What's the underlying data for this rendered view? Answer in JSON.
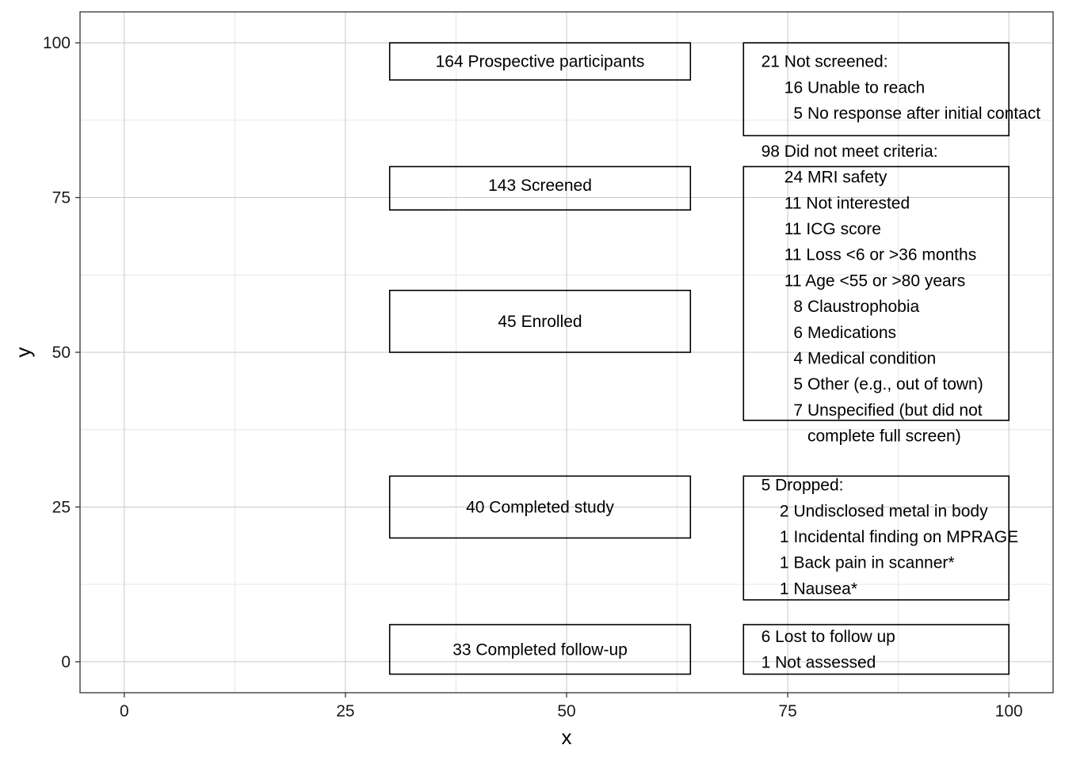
{
  "chart_data": {
    "type": "diagram",
    "xlabel": "x",
    "ylabel": "y",
    "xlim": [
      -5,
      105
    ],
    "ylim": [
      -5,
      105
    ],
    "x_ticks": [
      0,
      25,
      50,
      75,
      100
    ],
    "y_ticks": [
      0,
      25,
      50,
      75,
      100
    ],
    "grid": true,
    "boxes": [
      {
        "id": "prospective",
        "xmin": 30,
        "xmax": 64,
        "ymin": 94,
        "ymax": 100,
        "label": "164 Prospective participants",
        "label_x": 47,
        "label_y": 97,
        "align": "center"
      },
      {
        "id": "screened",
        "xmin": 30,
        "xmax": 64,
        "ymin": 73,
        "ymax": 80,
        "label": "143 Screened",
        "label_x": 47,
        "label_y": 77,
        "align": "center"
      },
      {
        "id": "enrolled",
        "xmin": 30,
        "xmax": 64,
        "ymin": 50,
        "ymax": 60,
        "label": "45 Enrolled",
        "label_x": 47,
        "label_y": 55,
        "align": "center"
      },
      {
        "id": "completed",
        "xmin": 30,
        "xmax": 64,
        "ymin": 20,
        "ymax": 30,
        "label": "40 Completed study",
        "label_x": 47,
        "label_y": 25,
        "align": "center"
      },
      {
        "id": "followup",
        "xmin": 30,
        "xmax": 64,
        "ymin": -2,
        "ymax": 6,
        "label": "33 Completed follow-up",
        "label_x": 47,
        "label_y": 2,
        "align": "center"
      },
      {
        "id": "not-screened",
        "xmin": 70,
        "xmax": 100,
        "ymin": 85,
        "ymax": 100,
        "label": "21 Not screened:\n     16 Unable to reach\n       5 No response after initial contact",
        "label_x": 72,
        "label_y": 92.8,
        "align": "left"
      },
      {
        "id": "criteria",
        "xmin": 70,
        "xmax": 100,
        "ymin": 39,
        "ymax": 80,
        "label": "98 Did not meet criteria:\n     24 MRI safety\n     11 Not interested\n     11 ICG score\n     11 Loss <6 or >36 months\n     11 Age <55 or >80 years\n       8 Claustrophobia\n       6 Medications\n       4 Medical condition\n       5 Other (e.g., out of town)\n       7 Unspecified (but did not\n          complete full screen)",
        "label_x": 72,
        "label_y": 59.5,
        "align": "left"
      },
      {
        "id": "dropped",
        "xmin": 70,
        "xmax": 100,
        "ymin": 10,
        "ymax": 30,
        "label": "5 Dropped:\n    2 Undisclosed metal in body\n    1 Incidental finding on MPRAGE\n    1 Back pain in scanner*\n    1 Nausea*",
        "label_x": 72,
        "label_y": 20.2,
        "align": "left"
      },
      {
        "id": "lost",
        "xmin": 70,
        "xmax": 100,
        "ymin": -2,
        "ymax": 6,
        "label": "6 Lost to follow up\n1 Not assessed",
        "label_x": 72,
        "label_y": 2,
        "align": "left"
      }
    ]
  }
}
